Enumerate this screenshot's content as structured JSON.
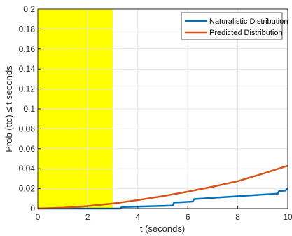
{
  "chart_data": {
    "type": "line",
    "xlabel": "t (seconds)",
    "ylabel": "Prob (ttc) ≤ t seconds",
    "xlim": [
      0,
      10
    ],
    "ylim": [
      0,
      0.2
    ],
    "xticks": [
      0,
      2,
      4,
      6,
      8,
      10
    ],
    "xtick_labels": [
      "0",
      "2",
      "4",
      "6",
      "8",
      "10"
    ],
    "yticks": [
      0,
      0.02,
      0.04,
      0.06,
      0.08,
      0.1,
      0.12,
      0.14,
      0.16,
      0.18,
      0.2
    ],
    "ytick_labels": [
      "0",
      "0.02",
      "0.04",
      "0.06",
      "0.08",
      "0.1",
      "0.12",
      "0.14",
      "0.16",
      "0.18",
      "0.2"
    ],
    "grid": true,
    "legend_position": "top-right",
    "highlight_region": {
      "x": [
        0,
        3
      ],
      "color": "#ffff00"
    },
    "series": [
      {
        "name": "Naturalistic Distribution",
        "color": "#0072bd",
        "x": [
          0,
          3.3,
          3.35,
          5.4,
          5.45,
          6.2,
          6.25,
          9.6,
          9.65,
          9.9,
          10
        ],
        "y": [
          0,
          0,
          0.0015,
          0.003,
          0.006,
          0.007,
          0.0095,
          0.015,
          0.0175,
          0.018,
          0.0205
        ]
      },
      {
        "name": "Predicted Distribution",
        "color": "#d95319",
        "x": [
          0,
          1,
          2,
          3,
          4,
          5,
          6,
          7,
          8,
          9,
          10
        ],
        "y": [
          0,
          0.0008,
          0.0025,
          0.005,
          0.0085,
          0.0125,
          0.017,
          0.022,
          0.0275,
          0.035,
          0.043
        ]
      }
    ]
  }
}
